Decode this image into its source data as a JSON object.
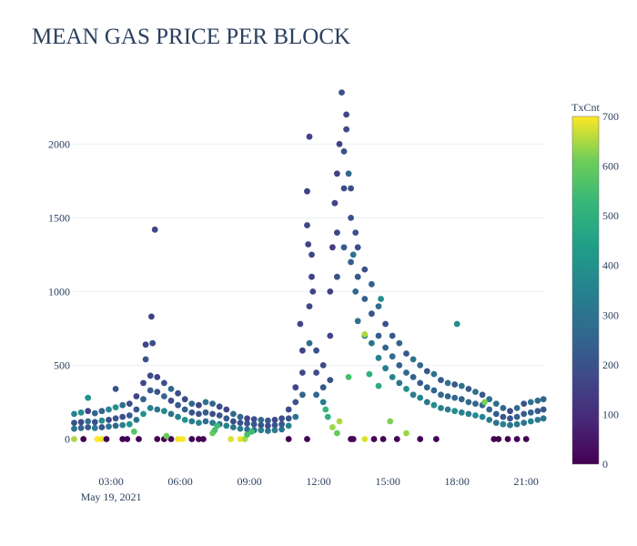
{
  "chart_data": {
    "type": "scatter",
    "title": "MEAN GAS PRICE PER BLOCK",
    "xlabel": "",
    "ylabel": "",
    "x_unit": "hours since 00:00 May 19, 2021",
    "xlim": [
      1.34,
      21.78
    ],
    "ylim": [
      -170,
      2360
    ],
    "x_ticks": [
      {
        "v": 3,
        "label": "03:00"
      },
      {
        "v": 6,
        "label": "06:00"
      },
      {
        "v": 9,
        "label": "09:00"
      },
      {
        "v": 12,
        "label": "12:00"
      },
      {
        "v": 15,
        "label": "15:00"
      },
      {
        "v": 18,
        "label": "18:00"
      },
      {
        "v": 21,
        "label": "21:00"
      }
    ],
    "x_date_label": "May 19, 2021",
    "y_ticks": [
      {
        "v": 0,
        "label": "0"
      },
      {
        "v": 500,
        "label": "500"
      },
      {
        "v": 1000,
        "label": "1000"
      },
      {
        "v": 1500,
        "label": "1500"
      },
      {
        "v": 2000,
        "label": "2000"
      }
    ],
    "grid": true,
    "colorbar": {
      "title": "TxCnt",
      "range": [
        0,
        700
      ],
      "ticks": [
        {
          "v": 0,
          "label": "0"
        },
        {
          "v": 100,
          "label": "100"
        },
        {
          "v": 200,
          "label": "200"
        },
        {
          "v": 300,
          "label": "300"
        },
        {
          "v": 400,
          "label": "400"
        },
        {
          "v": 500,
          "label": "500"
        },
        {
          "v": 600,
          "label": "600"
        },
        {
          "v": 700,
          "label": "700"
        }
      ],
      "colorscale": "viridis"
    },
    "points_format": [
      "hour",
      "gas_price",
      "txcnt"
    ],
    "points": [
      [
        1.4,
        70,
        300
      ],
      [
        1.4,
        110,
        200
      ],
      [
        1.4,
        170,
        350
      ],
      [
        1.7,
        75,
        250
      ],
      [
        1.7,
        115,
        180
      ],
      [
        1.7,
        180,
        380
      ],
      [
        2.0,
        80,
        220
      ],
      [
        2.0,
        120,
        300
      ],
      [
        2.0,
        190,
        160
      ],
      [
        2.0,
        280,
        400
      ],
      [
        2.3,
        75,
        330
      ],
      [
        2.3,
        115,
        200
      ],
      [
        2.3,
        175,
        260
      ],
      [
        2.6,
        80,
        200
      ],
      [
        2.6,
        125,
        380
      ],
      [
        2.6,
        190,
        250
      ],
      [
        2.9,
        85,
        300
      ],
      [
        2.9,
        130,
        180
      ],
      [
        2.9,
        200,
        350
      ],
      [
        3.2,
        90,
        260
      ],
      [
        3.2,
        140,
        210
      ],
      [
        3.2,
        215,
        400
      ],
      [
        3.2,
        340,
        200
      ],
      [
        3.5,
        95,
        350
      ],
      [
        3.5,
        150,
        190
      ],
      [
        3.5,
        230,
        280
      ],
      [
        3.8,
        100,
        400
      ],
      [
        3.8,
        160,
        220
      ],
      [
        3.8,
        240,
        180
      ],
      [
        4.1,
        130,
        300
      ],
      [
        4.1,
        200,
        220
      ],
      [
        4.1,
        290,
        160
      ],
      [
        4.4,
        170,
        400
      ],
      [
        4.4,
        270,
        250
      ],
      [
        4.4,
        380,
        170
      ],
      [
        4.5,
        540,
        200
      ],
      [
        4.5,
        640,
        170
      ],
      [
        4.7,
        210,
        350
      ],
      [
        4.7,
        330,
        230
      ],
      [
        4.7,
        430,
        180
      ],
      [
        4.75,
        830,
        150
      ],
      [
        4.8,
        650,
        180
      ],
      [
        4.9,
        1420,
        170
      ],
      [
        5.0,
        200,
        300
      ],
      [
        5.0,
        320,
        210
      ],
      [
        5.0,
        420,
        160
      ],
      [
        5.3,
        190,
        380
      ],
      [
        5.3,
        290,
        250
      ],
      [
        5.3,
        380,
        200
      ],
      [
        5.6,
        170,
        300
      ],
      [
        5.6,
        260,
        180
      ],
      [
        5.6,
        340,
        260
      ],
      [
        5.9,
        150,
        350
      ],
      [
        5.9,
        230,
        220
      ],
      [
        5.9,
        310,
        190
      ],
      [
        6.2,
        130,
        400
      ],
      [
        6.2,
        200,
        230
      ],
      [
        6.2,
        270,
        180
      ],
      [
        6.5,
        120,
        320
      ],
      [
        6.5,
        180,
        210
      ],
      [
        6.5,
        240,
        260
      ],
      [
        6.8,
        110,
        350
      ],
      [
        6.8,
        170,
        200
      ],
      [
        6.8,
        230,
        170
      ],
      [
        7.1,
        120,
        280
      ],
      [
        7.1,
        180,
        220
      ],
      [
        7.1,
        250,
        300
      ],
      [
        7.4,
        110,
        330
      ],
      [
        7.4,
        170,
        190
      ],
      [
        7.4,
        240,
        250
      ],
      [
        7.7,
        100,
        300
      ],
      [
        7.7,
        160,
        210
      ],
      [
        7.7,
        220,
        180
      ],
      [
        8.0,
        90,
        350
      ],
      [
        8.0,
        140,
        230
      ],
      [
        8.0,
        200,
        170
      ],
      [
        8.3,
        80,
        300
      ],
      [
        8.3,
        120,
        190
      ],
      [
        8.3,
        170,
        260
      ],
      [
        8.6,
        70,
        330
      ],
      [
        8.6,
        110,
        200
      ],
      [
        8.6,
        150,
        250
      ],
      [
        8.9,
        65,
        300
      ],
      [
        8.9,
        105,
        210
      ],
      [
        8.9,
        140,
        170
      ],
      [
        9.2,
        60,
        280
      ],
      [
        9.2,
        100,
        220
      ],
      [
        9.2,
        135,
        190
      ],
      [
        9.5,
        60,
        350
      ],
      [
        9.5,
        95,
        200
      ],
      [
        9.5,
        130,
        260
      ],
      [
        9.8,
        55,
        300
      ],
      [
        9.8,
        90,
        180
      ],
      [
        9.8,
        125,
        230
      ],
      [
        10.1,
        60,
        330
      ],
      [
        10.1,
        95,
        200
      ],
      [
        10.1,
        130,
        170
      ],
      [
        10.4,
        65,
        300
      ],
      [
        10.4,
        100,
        220
      ],
      [
        10.4,
        140,
        190
      ],
      [
        10.7,
        90,
        350
      ],
      [
        10.7,
        140,
        210
      ],
      [
        10.7,
        200,
        180
      ],
      [
        11.0,
        150,
        300
      ],
      [
        11.0,
        250,
        200
      ],
      [
        11.0,
        350,
        170
      ],
      [
        11.2,
        780,
        160
      ],
      [
        11.3,
        300,
        250
      ],
      [
        11.3,
        450,
        180
      ],
      [
        11.3,
        600,
        160
      ],
      [
        11.5,
        1450,
        170
      ],
      [
        11.5,
        1680,
        160
      ],
      [
        11.55,
        1320,
        160
      ],
      [
        11.6,
        2050,
        160
      ],
      [
        11.6,
        900,
        170
      ],
      [
        11.6,
        650,
        280
      ],
      [
        11.7,
        1250,
        170
      ],
      [
        11.7,
        1100,
        160
      ],
      [
        11.75,
        1000,
        170
      ],
      [
        11.9,
        300,
        260
      ],
      [
        11.9,
        450,
        190
      ],
      [
        11.9,
        600,
        200
      ],
      [
        12.2,
        250,
        330
      ],
      [
        12.2,
        350,
        220
      ],
      [
        12.2,
        500,
        180
      ],
      [
        12.5,
        400,
        200
      ],
      [
        12.5,
        700,
        160
      ],
      [
        12.5,
        1000,
        150
      ],
      [
        12.6,
        1300,
        150
      ],
      [
        12.7,
        1600,
        160
      ],
      [
        12.8,
        1100,
        200
      ],
      [
        12.8,
        1400,
        170
      ],
      [
        12.8,
        1800,
        150
      ],
      [
        12.9,
        2000,
        160
      ],
      [
        13.0,
        2350,
        200
      ],
      [
        13.1,
        1300,
        230
      ],
      [
        13.1,
        1700,
        180
      ],
      [
        13.1,
        1950,
        200
      ],
      [
        13.2,
        2200,
        170
      ],
      [
        13.2,
        2100,
        180
      ],
      [
        13.3,
        1800,
        260
      ],
      [
        13.4,
        1200,
        240
      ],
      [
        13.4,
        1500,
        200
      ],
      [
        13.4,
        1700,
        180
      ],
      [
        13.5,
        1250,
        300
      ],
      [
        13.6,
        1000,
        260
      ],
      [
        13.6,
        1400,
        200
      ],
      [
        13.7,
        800,
        300
      ],
      [
        13.7,
        1100,
        220
      ],
      [
        13.7,
        1300,
        190
      ],
      [
        14.0,
        700,
        330
      ],
      [
        14.0,
        950,
        240
      ],
      [
        14.0,
        1150,
        200
      ],
      [
        14.3,
        650,
        300
      ],
      [
        14.3,
        850,
        210
      ],
      [
        14.3,
        1050,
        250
      ],
      [
        14.6,
        550,
        350
      ],
      [
        14.6,
        700,
        230
      ],
      [
        14.6,
        900,
        280
      ],
      [
        14.7,
        950,
        380
      ],
      [
        14.9,
        480,
        330
      ],
      [
        14.9,
        620,
        250
      ],
      [
        14.9,
        780,
        200
      ],
      [
        15.2,
        420,
        360
      ],
      [
        15.2,
        560,
        270
      ],
      [
        15.2,
        700,
        220
      ],
      [
        15.5,
        380,
        300
      ],
      [
        15.5,
        500,
        240
      ],
      [
        15.5,
        650,
        260
      ],
      [
        15.8,
        340,
        380
      ],
      [
        15.8,
        450,
        260
      ],
      [
        15.8,
        580,
        220
      ],
      [
        16.1,
        300,
        330
      ],
      [
        16.1,
        420,
        250
      ],
      [
        16.1,
        540,
        300
      ],
      [
        16.4,
        280,
        360
      ],
      [
        16.4,
        380,
        230
      ],
      [
        16.4,
        500,
        270
      ],
      [
        16.7,
        250,
        320
      ],
      [
        16.7,
        350,
        260
      ],
      [
        16.7,
        460,
        210
      ],
      [
        17.0,
        230,
        380
      ],
      [
        17.0,
        330,
        250
      ],
      [
        17.0,
        440,
        300
      ],
      [
        17.3,
        210,
        350
      ],
      [
        17.3,
        300,
        270
      ],
      [
        17.3,
        400,
        220
      ],
      [
        17.6,
        200,
        330
      ],
      [
        17.6,
        290,
        250
      ],
      [
        17.6,
        380,
        290
      ],
      [
        17.9,
        190,
        380
      ],
      [
        17.9,
        280,
        260
      ],
      [
        17.9,
        370,
        220
      ],
      [
        18.0,
        780,
        380
      ],
      [
        18.2,
        180,
        350
      ],
      [
        18.2,
        270,
        250
      ],
      [
        18.2,
        360,
        300
      ],
      [
        18.5,
        170,
        330
      ],
      [
        18.5,
        250,
        270
      ],
      [
        18.5,
        340,
        230
      ],
      [
        18.8,
        160,
        380
      ],
      [
        18.8,
        240,
        250
      ],
      [
        18.8,
        320,
        290
      ],
      [
        19.1,
        150,
        350
      ],
      [
        19.1,
        230,
        260
      ],
      [
        19.1,
        300,
        220
      ],
      [
        19.4,
        130,
        330
      ],
      [
        19.4,
        200,
        250
      ],
      [
        19.4,
        270,
        300
      ],
      [
        19.7,
        110,
        300
      ],
      [
        19.7,
        170,
        230
      ],
      [
        19.7,
        240,
        270
      ],
      [
        20.0,
        100,
        350
      ],
      [
        20.0,
        150,
        210
      ],
      [
        20.0,
        210,
        260
      ],
      [
        20.3,
        95,
        300
      ],
      [
        20.3,
        140,
        220
      ],
      [
        20.3,
        190,
        190
      ],
      [
        20.6,
        100,
        330
      ],
      [
        20.6,
        150,
        240
      ],
      [
        20.6,
        210,
        280
      ],
      [
        20.9,
        110,
        300
      ],
      [
        20.9,
        170,
        230
      ],
      [
        20.9,
        240,
        200
      ],
      [
        21.2,
        120,
        350
      ],
      [
        21.2,
        180,
        250
      ],
      [
        21.2,
        250,
        300
      ],
      [
        21.5,
        130,
        320
      ],
      [
        21.5,
        190,
        230
      ],
      [
        21.5,
        260,
        280
      ],
      [
        21.75,
        140,
        300
      ],
      [
        21.75,
        200,
        220
      ],
      [
        21.75,
        270,
        260
      ],
      [
        1.4,
        0,
        650
      ],
      [
        1.8,
        0,
        0
      ],
      [
        2.4,
        0,
        700
      ],
      [
        2.6,
        0,
        690
      ],
      [
        2.8,
        0,
        0
      ],
      [
        3.5,
        0,
        0
      ],
      [
        3.7,
        0,
        0
      ],
      [
        4.2,
        0,
        0
      ],
      [
        5.0,
        0,
        0
      ],
      [
        5.3,
        0,
        0
      ],
      [
        5.6,
        0,
        0
      ],
      [
        5.9,
        0,
        690
      ],
      [
        6.1,
        0,
        700
      ],
      [
        6.5,
        0,
        0
      ],
      [
        6.8,
        0,
        0
      ],
      [
        7.0,
        0,
        0
      ],
      [
        8.2,
        0,
        680
      ],
      [
        8.6,
        0,
        690
      ],
      [
        8.8,
        0,
        650
      ],
      [
        10.7,
        0,
        0
      ],
      [
        11.5,
        0,
        0
      ],
      [
        13.4,
        0,
        0
      ],
      [
        13.5,
        0,
        0
      ],
      [
        14.0,
        0,
        680
      ],
      [
        14.4,
        0,
        0
      ],
      [
        14.8,
        0,
        0
      ],
      [
        15.4,
        0,
        0
      ],
      [
        16.4,
        0,
        0
      ],
      [
        17.1,
        0,
        0
      ],
      [
        19.6,
        0,
        0
      ],
      [
        19.8,
        0,
        0
      ],
      [
        20.2,
        0,
        0
      ],
      [
        20.6,
        0,
        0
      ],
      [
        21.0,
        0,
        0
      ],
      [
        7.4,
        40,
        600
      ],
      [
        7.5,
        60,
        560
      ],
      [
        7.6,
        90,
        540
      ],
      [
        8.9,
        30,
        560
      ],
      [
        9.1,
        50,
        540
      ],
      [
        12.3,
        200,
        520
      ],
      [
        12.4,
        150,
        500
      ],
      [
        12.6,
        80,
        640
      ],
      [
        12.8,
        40,
        600
      ],
      [
        12.9,
        120,
        650
      ],
      [
        13.3,
        420,
        550
      ],
      [
        14.0,
        710,
        650
      ],
      [
        14.2,
        440,
        500
      ],
      [
        14.6,
        360,
        480
      ],
      [
        15.1,
        120,
        620
      ],
      [
        15.8,
        40,
        640
      ],
      [
        5.4,
        20,
        600
      ],
      [
        4.0,
        50,
        580
      ],
      [
        19.2,
        250,
        620
      ]
    ]
  }
}
